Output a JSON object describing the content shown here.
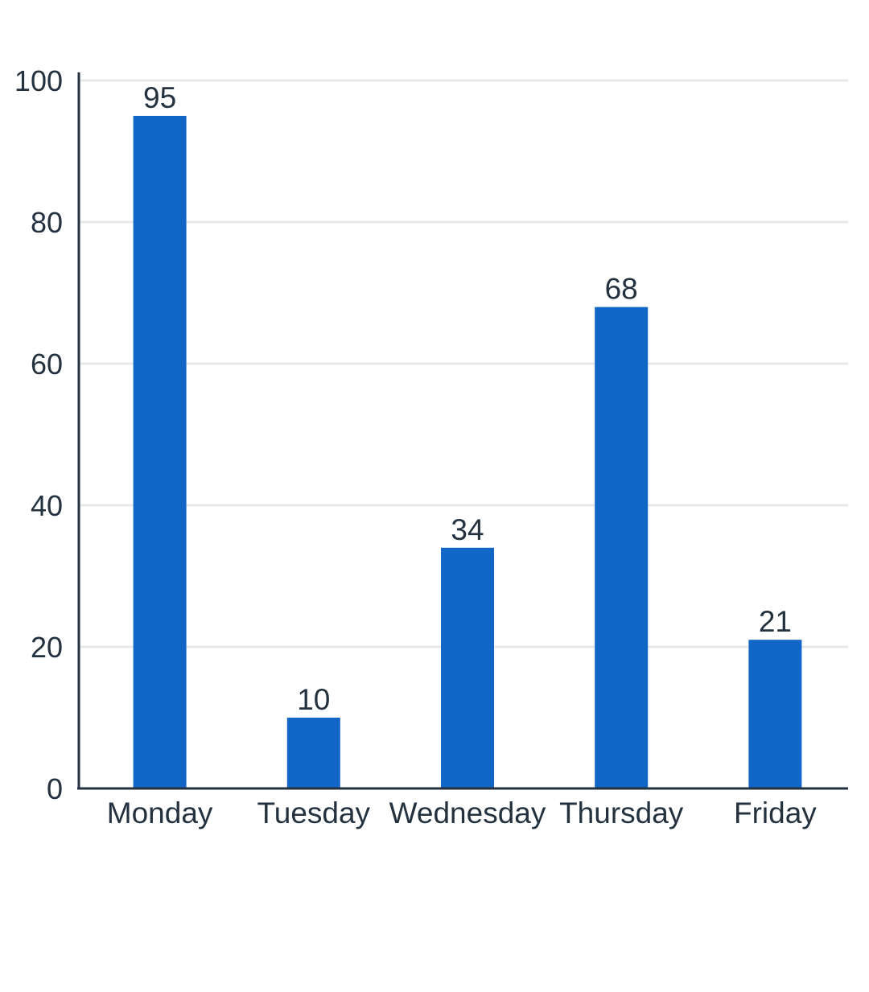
{
  "chart_data": {
    "type": "bar",
    "title": "",
    "xlabel": "",
    "ylabel": "",
    "categories": [
      "Monday",
      "Tuesday",
      "Wednesday",
      "Thursday",
      "Friday"
    ],
    "values": [
      95,
      10,
      34,
      68,
      21
    ],
    "ylim": [
      0,
      100
    ],
    "yticks": [
      0,
      20,
      40,
      60,
      80,
      100
    ],
    "grid": true,
    "legend": "none",
    "data_labels": true,
    "colors": {
      "bar": "#1166c8",
      "axis": "#243240",
      "grid": "#e8e8e8",
      "text": "#243240"
    }
  }
}
